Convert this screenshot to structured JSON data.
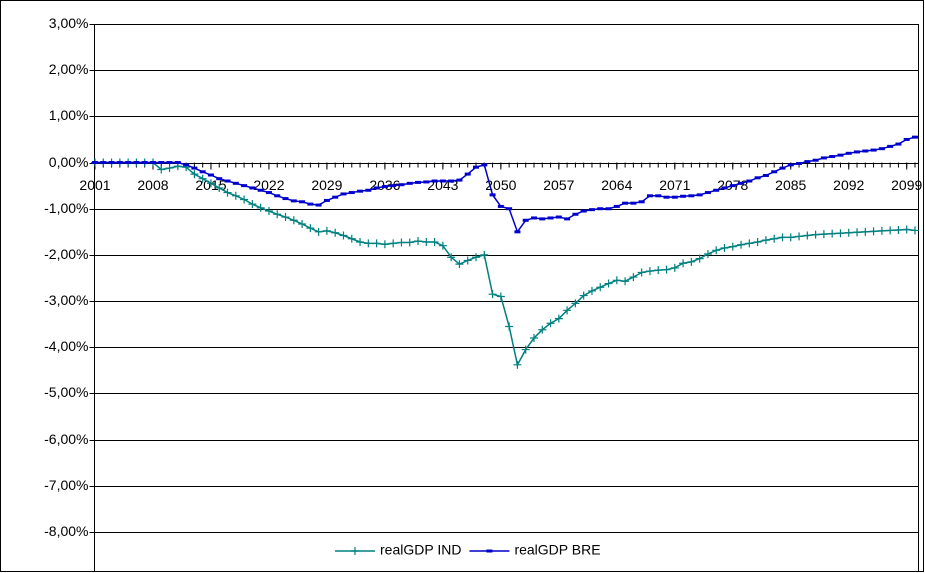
{
  "chart_data": {
    "type": "line",
    "x": [
      2001,
      2002,
      2003,
      2004,
      2005,
      2006,
      2007,
      2008,
      2009,
      2010,
      2011,
      2012,
      2013,
      2014,
      2015,
      2016,
      2017,
      2018,
      2019,
      2020,
      2021,
      2022,
      2023,
      2024,
      2025,
      2026,
      2027,
      2028,
      2029,
      2030,
      2031,
      2032,
      2033,
      2034,
      2035,
      2036,
      2037,
      2038,
      2039,
      2040,
      2041,
      2042,
      2043,
      2044,
      2045,
      2046,
      2047,
      2048,
      2049,
      2050,
      2051,
      2052,
      2053,
      2054,
      2055,
      2056,
      2057,
      2058,
      2059,
      2060,
      2061,
      2062,
      2063,
      2064,
      2065,
      2066,
      2067,
      2068,
      2069,
      2070,
      2071,
      2072,
      2073,
      2074,
      2075,
      2076,
      2077,
      2078,
      2079,
      2080,
      2081,
      2082,
      2083,
      2084,
      2085,
      2086,
      2087,
      2088,
      2089,
      2090,
      2091,
      2092,
      2093,
      2094,
      2095,
      2096,
      2097,
      2098,
      2099,
      2100
    ],
    "xlim": [
      2001,
      2100
    ],
    "xticks": [
      2001,
      2008,
      2015,
      2022,
      2029,
      2036,
      2043,
      2050,
      2057,
      2064,
      2071,
      2078,
      2085,
      2092,
      2099
    ],
    "ylim": [
      -8,
      3
    ],
    "yticks": [
      {
        "value": -8,
        "label": "-8,00%"
      },
      {
        "value": -7,
        "label": "-7,00%"
      },
      {
        "value": -6,
        "label": "-6,00%"
      },
      {
        "value": -5,
        "label": "-5,00%"
      },
      {
        "value": -4,
        "label": "-4,00%"
      },
      {
        "value": -3,
        "label": "-3,00%"
      },
      {
        "value": -2,
        "label": "-2,00%"
      },
      {
        "value": -1,
        "label": "-1,00%"
      },
      {
        "value": 0,
        "label": "0,00%"
      },
      {
        "value": 1,
        "label": "1,00%"
      },
      {
        "value": 2,
        "label": "2,00%"
      },
      {
        "value": 3,
        "label": "3,00%"
      }
    ],
    "grid": true,
    "legend": "bottom",
    "series": [
      {
        "name": "realGDP IND",
        "color": "#008080",
        "marker": "plus",
        "values": [
          0,
          0,
          0,
          0,
          0,
          0,
          0,
          0,
          -0.15,
          -0.12,
          -0.08,
          -0.1,
          -0.25,
          -0.35,
          -0.45,
          -0.55,
          -0.65,
          -0.72,
          -0.8,
          -0.9,
          -0.98,
          -1.05,
          -1.12,
          -1.18,
          -1.25,
          -1.33,
          -1.42,
          -1.5,
          -1.48,
          -1.52,
          -1.58,
          -1.65,
          -1.72,
          -1.75,
          -1.75,
          -1.77,
          -1.75,
          -1.73,
          -1.73,
          -1.7,
          -1.72,
          -1.72,
          -1.8,
          -2.05,
          -2.2,
          -2.12,
          -2.05,
          -2.0,
          -2.85,
          -2.9,
          -3.55,
          -4.38,
          -4.05,
          -3.8,
          -3.62,
          -3.48,
          -3.38,
          -3.2,
          -3.05,
          -2.88,
          -2.78,
          -2.7,
          -2.62,
          -2.55,
          -2.57,
          -2.48,
          -2.38,
          -2.35,
          -2.33,
          -2.32,
          -2.28,
          -2.18,
          -2.15,
          -2.08,
          -1.98,
          -1.9,
          -1.85,
          -1.82,
          -1.78,
          -1.75,
          -1.72,
          -1.68,
          -1.65,
          -1.62,
          -1.62,
          -1.6,
          -1.58,
          -1.56,
          -1.55,
          -1.54,
          -1.53,
          -1.52,
          -1.51,
          -1.5,
          -1.49,
          -1.48,
          -1.47,
          -1.46,
          -1.45,
          -1.47
        ]
      },
      {
        "name": "realGDP BRE",
        "color": "#0000cc",
        "marker": "dash",
        "values": [
          0,
          0,
          0,
          0,
          0,
          0,
          0,
          0,
          0,
          0,
          0,
          -0.05,
          -0.12,
          -0.2,
          -0.27,
          -0.35,
          -0.4,
          -0.45,
          -0.5,
          -0.55,
          -0.6,
          -0.65,
          -0.72,
          -0.78,
          -0.83,
          -0.85,
          -0.9,
          -0.92,
          -0.82,
          -0.75,
          -0.68,
          -0.65,
          -0.62,
          -0.6,
          -0.55,
          -0.52,
          -0.5,
          -0.48,
          -0.45,
          -0.43,
          -0.42,
          -0.4,
          -0.4,
          -0.4,
          -0.38,
          -0.25,
          -0.1,
          -0.05,
          -0.7,
          -0.95,
          -1.0,
          -1.5,
          -1.25,
          -1.2,
          -1.22,
          -1.2,
          -1.18,
          -1.22,
          -1.12,
          -1.05,
          -1.02,
          -1.0,
          -1.0,
          -0.95,
          -0.88,
          -0.88,
          -0.85,
          -0.72,
          -0.72,
          -0.75,
          -0.75,
          -0.73,
          -0.72,
          -0.7,
          -0.65,
          -0.6,
          -0.55,
          -0.5,
          -0.45,
          -0.4,
          -0.33,
          -0.28,
          -0.2,
          -0.12,
          -0.05,
          -0.02,
          0.02,
          0.05,
          0.1,
          0.13,
          0.16,
          0.2,
          0.23,
          0.25,
          0.27,
          0.3,
          0.35,
          0.4,
          0.5,
          0.55
        ]
      }
    ]
  }
}
